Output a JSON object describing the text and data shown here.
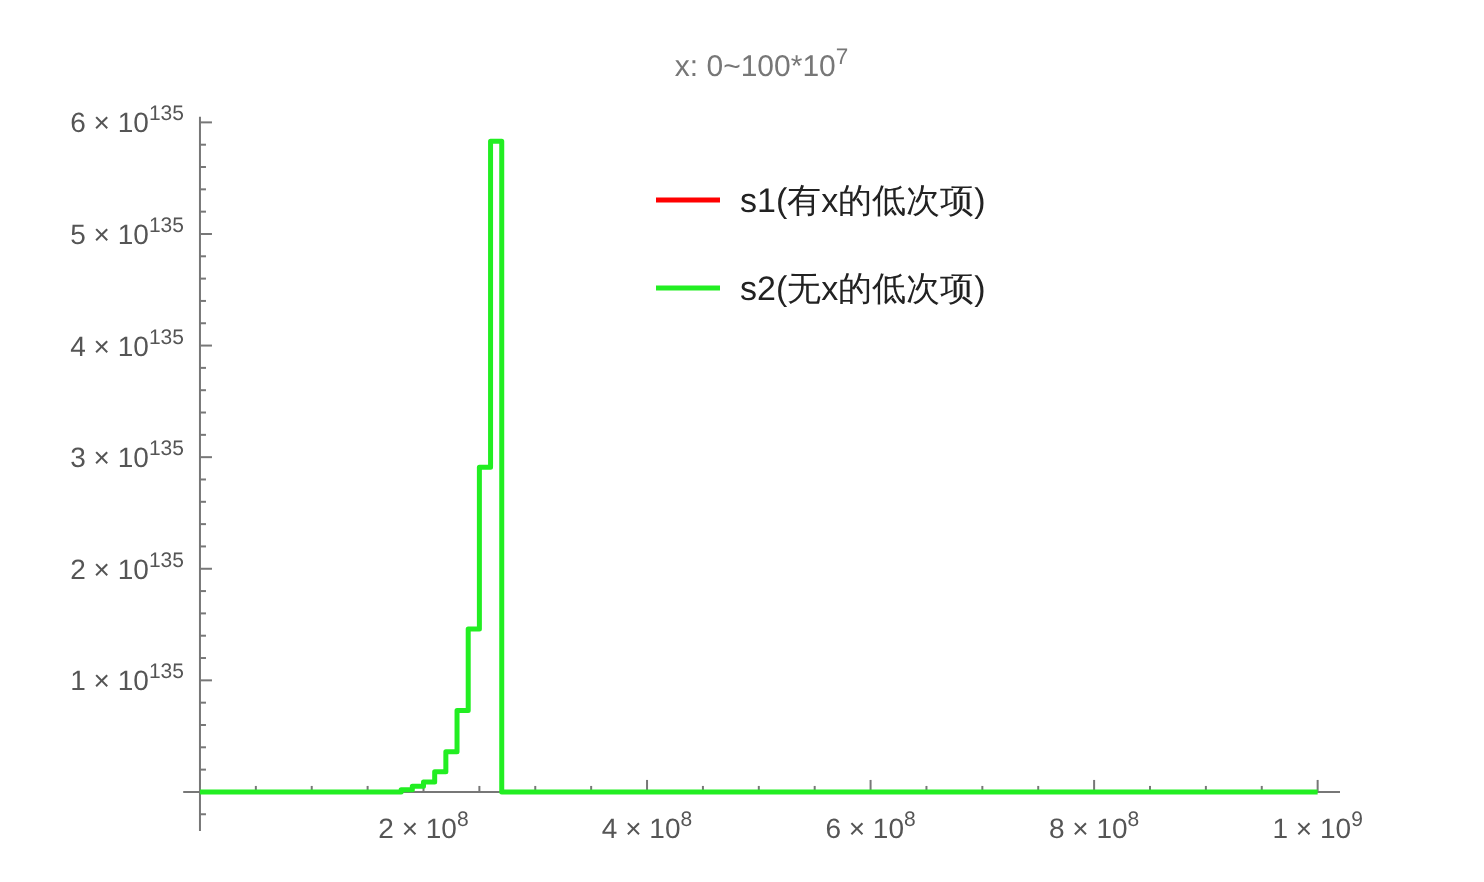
{
  "chart_data": {
    "type": "step",
    "title": "x: 0~100*10$^{7}$",
    "x": [
      0,
      10000000.0,
      20000000.0,
      30000000.0,
      40000000.0,
      50000000.0,
      60000000.0,
      70000000.0,
      80000000.0,
      90000000.0,
      100000000.0,
      110000000.0,
      120000000.0,
      130000000.0,
      140000000.0,
      150000000.0,
      160000000.0,
      170000000.0,
      180000000.0,
      190000000.0,
      200000000.0,
      210000000.0,
      220000000.0,
      230000000.0,
      240000000.0,
      250000000.0,
      260000000.0,
      270000000.0,
      300000000.0,
      400000000.0,
      500000000.0,
      600000000.0,
      700000000.0,
      800000000.0,
      900000000.0,
      1000000000.0
    ],
    "series": [
      {
        "name": "s1(有x的低次项)",
        "color": "#ff0000",
        "values": [
          null,
          null,
          null,
          null,
          null,
          null,
          null,
          null,
          null,
          null,
          null,
          null,
          null,
          null,
          null,
          null,
          null,
          null,
          null,
          null,
          null,
          null,
          null,
          null,
          null,
          null,
          null,
          null,
          null,
          null,
          null,
          null,
          null,
          null,
          null,
          null
        ]
      },
      {
        "name": "s2(无x的低次项)",
        "color": "#22ee22",
        "values": [
          0,
          0,
          0,
          0,
          0,
          0,
          0,
          0,
          0,
          0,
          0,
          0,
          0,
          0,
          0,
          0,
          0,
          0,
          2e+133,
          5e+133,
          9e+133,
          1.8e+134,
          3.6e+134,
          7.3e+134,
          1.46e+135,
          2.91e+135,
          5.83e+135,
          0,
          0,
          0,
          0,
          0,
          0,
          0,
          0,
          0
        ]
      }
    ],
    "xlim": [
      -15000000.0,
      1020000000.0
    ],
    "ylim": [
      -3.5e+134,
      6.05e+135
    ],
    "xticks": [
      {
        "value": 50000000.0,
        "label": null
      },
      {
        "value": 100000000.0,
        "label": null
      },
      {
        "value": 150000000.0,
        "label": null
      },
      {
        "value": 200000000.0,
        "label": "2 × 10$^{8}$"
      },
      {
        "value": 250000000.0,
        "label": null
      },
      {
        "value": 300000000.0,
        "label": null
      },
      {
        "value": 350000000.0,
        "label": null
      },
      {
        "value": 400000000.0,
        "label": "4 × 10$^{8}$"
      },
      {
        "value": 450000000.0,
        "label": null
      },
      {
        "value": 500000000.0,
        "label": null
      },
      {
        "value": 550000000.0,
        "label": null
      },
      {
        "value": 600000000.0,
        "label": "6 × 10$^{8}$"
      },
      {
        "value": 650000000.0,
        "label": null
      },
      {
        "value": 700000000.0,
        "label": null
      },
      {
        "value": 750000000.0,
        "label": null
      },
      {
        "value": 800000000.0,
        "label": "8 × 10$^{8}$"
      },
      {
        "value": 850000000.0,
        "label": null
      },
      {
        "value": 900000000.0,
        "label": null
      },
      {
        "value": 950000000.0,
        "label": null
      },
      {
        "value": 1000000000.0,
        "label": "1 × 10$^{9}$"
      }
    ],
    "yticks": [
      {
        "value": -2e+134,
        "label": null
      },
      {
        "value": 2e+134,
        "label": null
      },
      {
        "value": 4e+134,
        "label": null
      },
      {
        "value": 6e+134,
        "label": null
      },
      {
        "value": 8e+134,
        "label": null
      },
      {
        "value": 1e+135,
        "label": "1 × 10$^{135}$"
      },
      {
        "value": 1.2e+135,
        "label": null
      },
      {
        "value": 1.4e+135,
        "label": null
      },
      {
        "value": 1.6e+135,
        "label": null
      },
      {
        "value": 1.8e+135,
        "label": null
      },
      {
        "value": 2e+135,
        "label": "2 × 10$^{135}$"
      },
      {
        "value": 2.2e+135,
        "label": null
      },
      {
        "value": 2.4e+135,
        "label": null
      },
      {
        "value": 2.6e+135,
        "label": null
      },
      {
        "value": 2.8e+135,
        "label": null
      },
      {
        "value": 3e+135,
        "label": "3 × 10$^{135}$"
      },
      {
        "value": 3.2e+135,
        "label": null
      },
      {
        "value": 3.4e+135,
        "label": null
      },
      {
        "value": 3.6e+135,
        "label": null
      },
      {
        "value": 3.8e+135,
        "label": null
      },
      {
        "value": 4e+135,
        "label": "4 × 10$^{135}$"
      },
      {
        "value": 4.2e+135,
        "label": null
      },
      {
        "value": 4.4e+135,
        "label": null
      },
      {
        "value": 4.6e+135,
        "label": null
      },
      {
        "value": 4.8e+135,
        "label": null
      },
      {
        "value": 5e+135,
        "label": "5 × 10$^{135}$"
      },
      {
        "value": 5.2e+135,
        "label": null
      },
      {
        "value": 5.4e+135,
        "label": null
      },
      {
        "value": 5.6e+135,
        "label": null
      },
      {
        "value": 5.8e+135,
        "label": null
      },
      {
        "value": 6e+135,
        "label": "6 × 10$^{135}$"
      }
    ],
    "legend": "top",
    "grid": false
  }
}
